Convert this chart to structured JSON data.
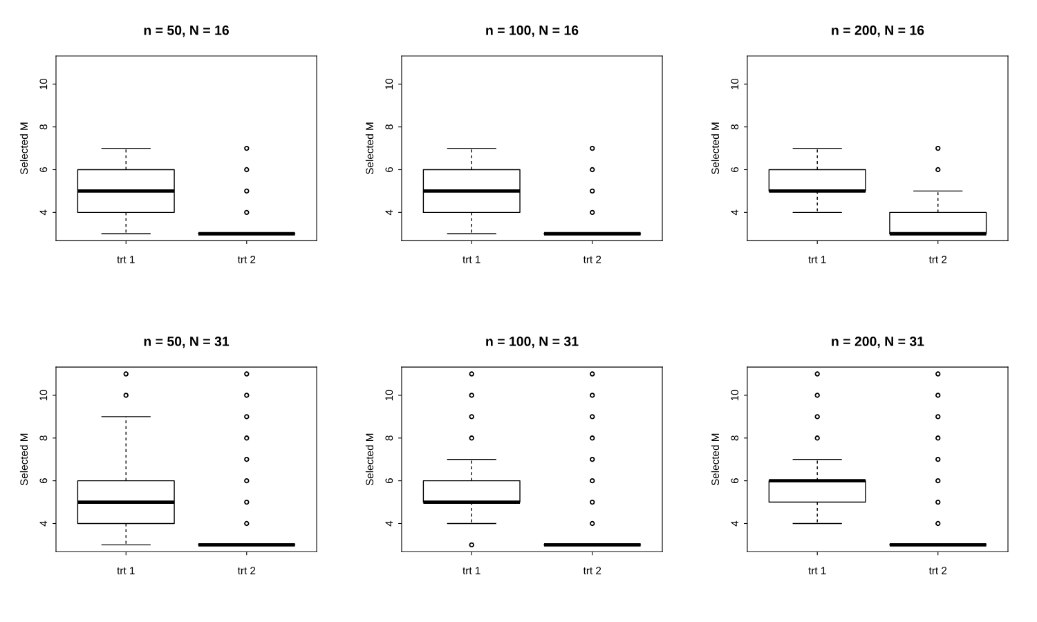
{
  "chart_data": [
    {
      "type": "box",
      "title": "n = 50, N = 16",
      "ylabel": "Selected M",
      "categories": [
        "trt 1",
        "trt 2"
      ],
      "ylim": [
        2.68,
        11.32
      ],
      "yticks": [
        4,
        6,
        8,
        10
      ],
      "boxes": [
        {
          "low": 3,
          "q1": 4,
          "median": 5,
          "q3": 6,
          "high": 7
        },
        {
          "low": 3,
          "q1": 3,
          "median": 3,
          "q3": 3,
          "high": 3,
          "outliers": [
            4,
            5,
            6,
            7
          ]
        }
      ]
    },
    {
      "type": "box",
      "title": "n = 100, N = 16",
      "ylabel": "Selected M",
      "categories": [
        "trt 1",
        "trt 2"
      ],
      "ylim": [
        2.68,
        11.32
      ],
      "yticks": [
        4,
        6,
        8,
        10
      ],
      "boxes": [
        {
          "low": 3,
          "q1": 4,
          "median": 5,
          "q3": 6,
          "high": 7
        },
        {
          "low": 3,
          "q1": 3,
          "median": 3,
          "q3": 3,
          "high": 3,
          "outliers": [
            4,
            5,
            6,
            7
          ]
        }
      ]
    },
    {
      "type": "box",
      "title": "n = 200, N = 16",
      "ylabel": "Selected M",
      "categories": [
        "trt 1",
        "trt 2"
      ],
      "ylim": [
        2.68,
        11.32
      ],
      "yticks": [
        4,
        6,
        8,
        10
      ],
      "boxes": [
        {
          "low": 4,
          "q1": 5,
          "median": 5,
          "q3": 6,
          "high": 7
        },
        {
          "low": 3,
          "q1": 3,
          "median": 3,
          "q3": 4,
          "high": 5,
          "outliers": [
            6,
            7
          ]
        }
      ]
    },
    {
      "type": "box",
      "title": "n = 50, N = 31",
      "ylabel": "Selected M",
      "categories": [
        "trt 1",
        "trt 2"
      ],
      "ylim": [
        2.68,
        11.32
      ],
      "yticks": [
        4,
        6,
        8,
        10
      ],
      "boxes": [
        {
          "low": 3,
          "q1": 4,
          "median": 5,
          "q3": 6,
          "high": 9,
          "outliers": [
            10,
            11
          ]
        },
        {
          "low": 3,
          "q1": 3,
          "median": 3,
          "q3": 3,
          "high": 3,
          "outliers": [
            4,
            5,
            6,
            7,
            8,
            9,
            10,
            11
          ]
        }
      ]
    },
    {
      "type": "box",
      "title": "n = 100, N = 31",
      "ylabel": "Selected M",
      "categories": [
        "trt 1",
        "trt 2"
      ],
      "ylim": [
        2.68,
        11.32
      ],
      "yticks": [
        4,
        6,
        8,
        10
      ],
      "boxes": [
        {
          "low": 4,
          "q1": 5,
          "median": 5,
          "q3": 6,
          "high": 7,
          "outliers": [
            3,
            8,
            9,
            10,
            11
          ]
        },
        {
          "low": 3,
          "q1": 3,
          "median": 3,
          "q3": 3,
          "high": 3,
          "outliers": [
            4,
            5,
            6,
            7,
            8,
            9,
            10,
            11
          ]
        }
      ]
    },
    {
      "type": "box",
      "title": "n = 200, N = 31",
      "ylabel": "Selected M",
      "categories": [
        "trt 1",
        "trt 2"
      ],
      "ylim": [
        2.68,
        11.32
      ],
      "yticks": [
        4,
        6,
        8,
        10
      ],
      "boxes": [
        {
          "low": 4,
          "q1": 5,
          "median": 6,
          "q3": 6,
          "high": 7,
          "outliers": [
            8,
            9,
            10,
            11
          ]
        },
        {
          "low": 3,
          "q1": 3,
          "median": 3,
          "q3": 3,
          "high": 3,
          "outliers": [
            4,
            5,
            6,
            7,
            8,
            9,
            10,
            11
          ]
        }
      ]
    }
  ]
}
